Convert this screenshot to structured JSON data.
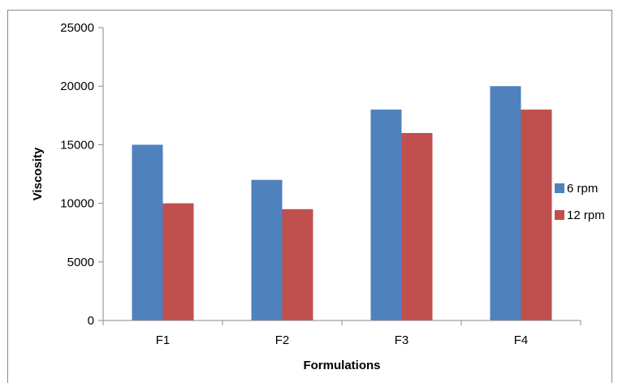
{
  "chart_data": {
    "type": "bar",
    "title": "",
    "xlabel": "Formulations",
    "ylabel": "Viscosity",
    "categories": [
      "F1",
      "F2",
      "F3",
      "F4"
    ],
    "series": [
      {
        "name": "6 rpm",
        "color": "#4f81bd",
        "values": [
          15000,
          12000,
          18000,
          20000
        ]
      },
      {
        "name": "12 rpm",
        "color": "#c0504d",
        "values": [
          10000,
          9500,
          16000,
          18000
        ]
      }
    ],
    "ylim": [
      0,
      25000
    ],
    "yticks": [
      "0",
      "5000",
      "10000",
      "15000",
      "20000",
      "25000"
    ],
    "grid": false,
    "legend_position": "right"
  }
}
